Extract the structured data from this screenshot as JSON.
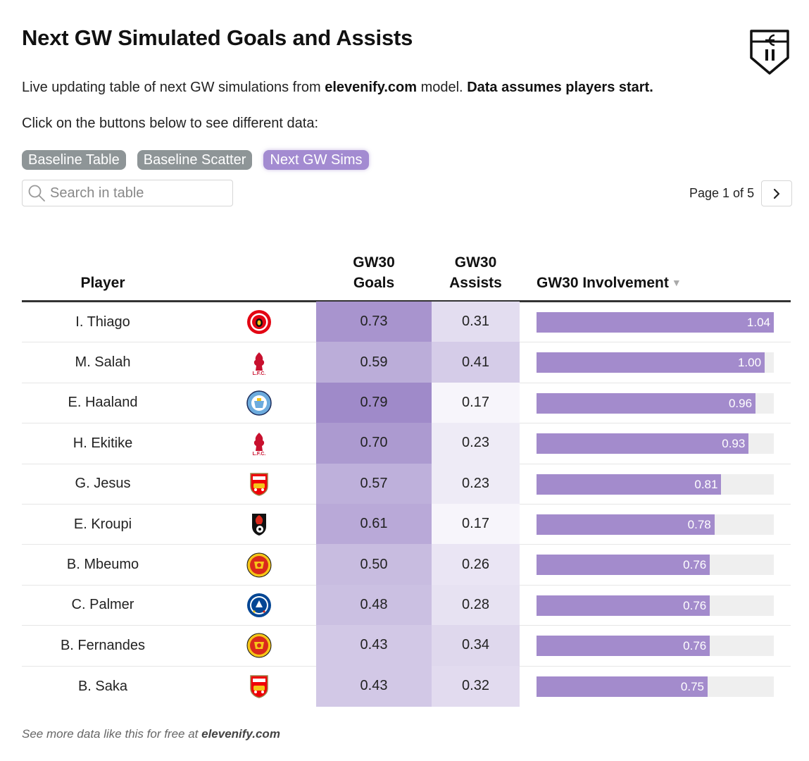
{
  "header": {
    "title": "Next GW Simulated Goals and Assists",
    "subtitle_pre": "Live updating table of next GW simulations from ",
    "subtitle_site": "elevenify.com",
    "subtitle_mid": " model. ",
    "subtitle_bold": "Data assumes players start.",
    "instructions": "Click on the buttons below to see different data:",
    "logo_text": "e 11"
  },
  "buttons": [
    {
      "label": "Baseline Table",
      "active": false
    },
    {
      "label": "Baseline Scatter",
      "active": false
    },
    {
      "label": "Next GW Sims",
      "active": true
    }
  ],
  "search": {
    "placeholder": "Search in table",
    "value": ""
  },
  "pagination": {
    "label": "Page 1 of 5",
    "current": 1,
    "total": 5
  },
  "table": {
    "columns": {
      "player": "Player",
      "goals_line1": "GW30",
      "goals_line2": "Goals",
      "assists_line1": "GW30",
      "assists_line2": "Assists",
      "involvement": "GW30 Involvement",
      "sort_indicator": "▼"
    },
    "involvement_max": 1.04,
    "rows": [
      {
        "player": "I. Thiago",
        "club": "brentford",
        "goals": "0.73",
        "assists": "0.31",
        "involvement": "1.04"
      },
      {
        "player": "M. Salah",
        "club": "liverpool",
        "goals": "0.59",
        "assists": "0.41",
        "involvement": "1.00"
      },
      {
        "player": "E. Haaland",
        "club": "man-city",
        "goals": "0.79",
        "assists": "0.17",
        "involvement": "0.96"
      },
      {
        "player": "H. Ekitike",
        "club": "liverpool",
        "goals": "0.70",
        "assists": "0.23",
        "involvement": "0.93"
      },
      {
        "player": "G. Jesus",
        "club": "arsenal",
        "goals": "0.57",
        "assists": "0.23",
        "involvement": "0.81"
      },
      {
        "player": "E. Kroupi",
        "club": "bournemouth",
        "goals": "0.61",
        "assists": "0.17",
        "involvement": "0.78"
      },
      {
        "player": "B. Mbeumo",
        "club": "man-utd",
        "goals": "0.50",
        "assists": "0.26",
        "involvement": "0.76"
      },
      {
        "player": "C. Palmer",
        "club": "chelsea",
        "goals": "0.48",
        "assists": "0.28",
        "involvement": "0.76"
      },
      {
        "player": "B. Fernandes",
        "club": "man-utd",
        "goals": "0.43",
        "assists": "0.34",
        "involvement": "0.76"
      },
      {
        "player": "B. Saka",
        "club": "arsenal",
        "goals": "0.43",
        "assists": "0.32",
        "involvement": "0.75"
      }
    ]
  },
  "colors": {
    "accent": "#a38bd1",
    "button_inactive": "#8e9597",
    "heat_low": "#f7f5fb",
    "heat_high": "#9f8ac9"
  },
  "footer": {
    "pre": "See more data like this for free at ",
    "site": "elevenify.com"
  }
}
